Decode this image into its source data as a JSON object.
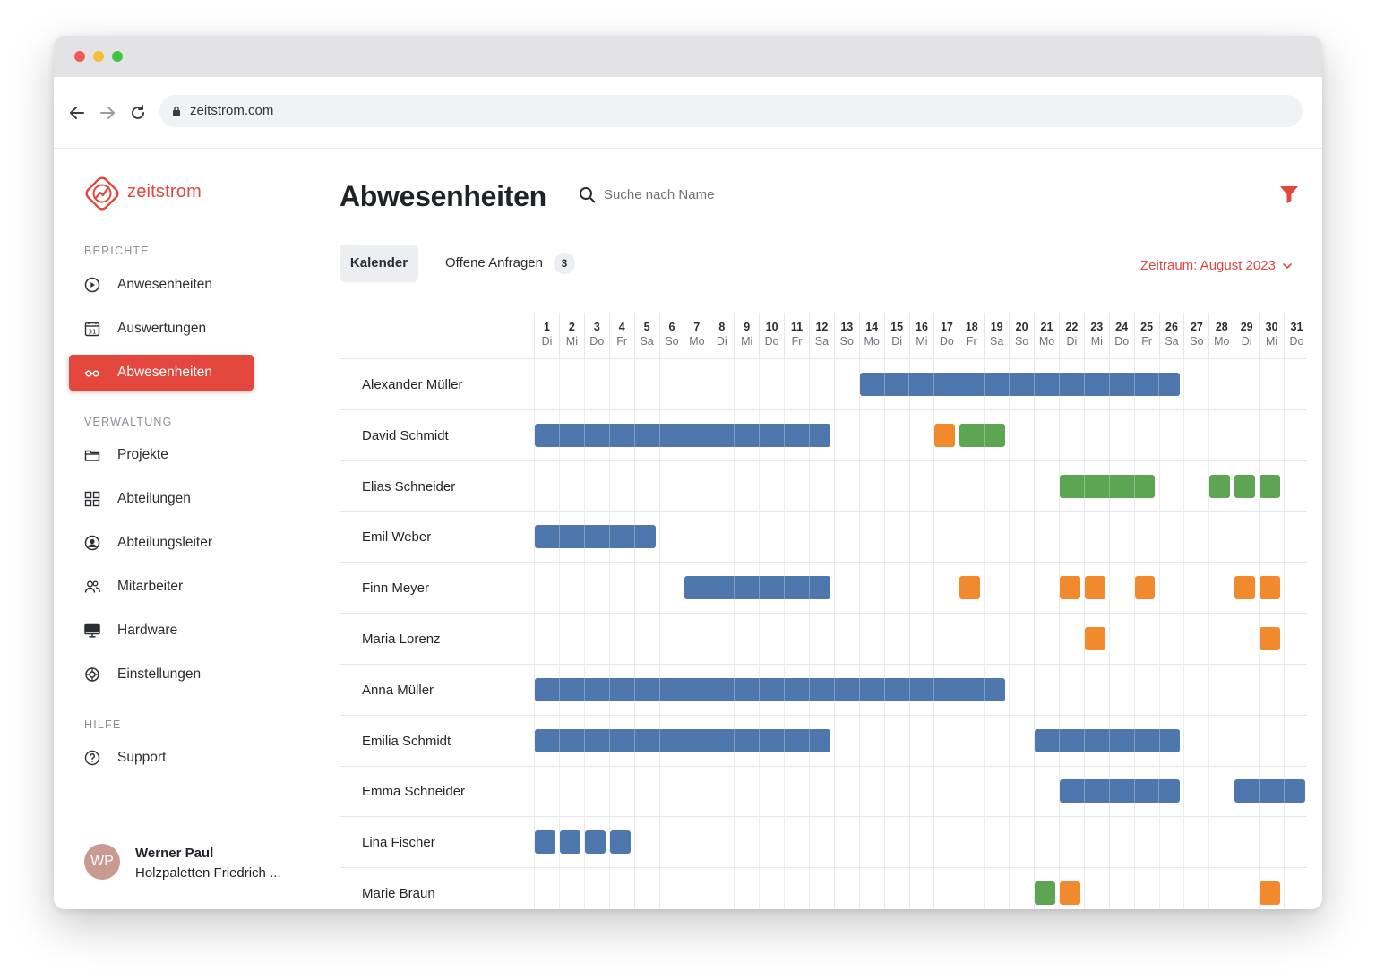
{
  "browser": {
    "url": "zeitstrom.com"
  },
  "app": {
    "logo_text": "zeitstrom"
  },
  "sidebar": {
    "sections": [
      {
        "title": "BERICHTE",
        "items": [
          {
            "label": "Anwesenheiten",
            "icon": "play-circle-icon",
            "active": false
          },
          {
            "label": "Auswertungen",
            "icon": "calendar-icon",
            "active": false
          },
          {
            "label": "Abwesenheiten",
            "icon": "glasses-icon",
            "active": true
          }
        ]
      },
      {
        "title": "VERWALTUNG",
        "items": [
          {
            "label": "Projekte",
            "icon": "folder-icon",
            "active": false
          },
          {
            "label": "Abteilungen",
            "icon": "grid-icon",
            "active": false
          },
          {
            "label": "Abteilungsleiter",
            "icon": "user-circle-icon",
            "active": false
          },
          {
            "label": "Mitarbeiter",
            "icon": "users-icon",
            "active": false
          },
          {
            "label": "Hardware",
            "icon": "monitor-icon",
            "active": false
          },
          {
            "label": "Einstellungen",
            "icon": "settings-icon",
            "active": false
          }
        ]
      },
      {
        "title": "HILFE",
        "items": [
          {
            "label": "Support",
            "icon": "help-circle-icon",
            "active": false
          }
        ]
      }
    ],
    "user": {
      "initials": "WP",
      "name": "Werner Paul",
      "company": "Holzpaletten Friedrich ..."
    }
  },
  "main": {
    "title": "Abwesenheiten",
    "search_placeholder": "Suche nach Name",
    "tabs": [
      {
        "label": "Kalender",
        "active": true
      },
      {
        "label": "Offene Anfragen",
        "active": false,
        "count": "3"
      }
    ],
    "period_label": "Zeitraum: August 2023"
  },
  "calendar": {
    "days": [
      {
        "num": "1",
        "wd": "Di"
      },
      {
        "num": "2",
        "wd": "Mi"
      },
      {
        "num": "3",
        "wd": "Do"
      },
      {
        "num": "4",
        "wd": "Fr"
      },
      {
        "num": "5",
        "wd": "Sa"
      },
      {
        "num": "6",
        "wd": "So"
      },
      {
        "num": "7",
        "wd": "Mo"
      },
      {
        "num": "8",
        "wd": "Di"
      },
      {
        "num": "9",
        "wd": "Mi"
      },
      {
        "num": "10",
        "wd": "Do"
      },
      {
        "num": "11",
        "wd": "Fr"
      },
      {
        "num": "12",
        "wd": "Sa"
      },
      {
        "num": "13",
        "wd": "So"
      },
      {
        "num": "14",
        "wd": "Mo"
      },
      {
        "num": "15",
        "wd": "Di"
      },
      {
        "num": "16",
        "wd": "Mi"
      },
      {
        "num": "17",
        "wd": "Do"
      },
      {
        "num": "18",
        "wd": "Fr"
      },
      {
        "num": "19",
        "wd": "Sa"
      },
      {
        "num": "20",
        "wd": "So"
      },
      {
        "num": "21",
        "wd": "Mo"
      },
      {
        "num": "22",
        "wd": "Di"
      },
      {
        "num": "23",
        "wd": "Mi"
      },
      {
        "num": "24",
        "wd": "Do"
      },
      {
        "num": "25",
        "wd": "Fr"
      },
      {
        "num": "26",
        "wd": "Sa"
      },
      {
        "num": "27",
        "wd": "So"
      },
      {
        "num": "28",
        "wd": "Mo"
      },
      {
        "num": "29",
        "wd": "Di"
      },
      {
        "num": "30",
        "wd": "Mi"
      },
      {
        "num": "31",
        "wd": "Do"
      }
    ],
    "colors": {
      "blue": "#4e77ad",
      "green": "#5da552",
      "orange": "#f08a2c"
    },
    "employees": [
      {
        "name": "Alexander Müller",
        "absences": [
          {
            "start": 14,
            "end": 26,
            "type": "blue"
          }
        ]
      },
      {
        "name": "David Schmidt",
        "absences": [
          {
            "start": 1,
            "end": 12,
            "type": "blue"
          },
          {
            "start": 17,
            "end": 17,
            "type": "orange"
          },
          {
            "start": 18,
            "end": 19,
            "type": "green"
          }
        ]
      },
      {
        "name": "Elias Schneider",
        "absences": [
          {
            "start": 22,
            "end": 25,
            "type": "green"
          },
          {
            "start": 28,
            "end": 28,
            "type": "green"
          },
          {
            "start": 29,
            "end": 29,
            "type": "green"
          },
          {
            "start": 30,
            "end": 30,
            "type": "green"
          }
        ]
      },
      {
        "name": "Emil Weber",
        "absences": [
          {
            "start": 1,
            "end": 5,
            "type": "blue"
          }
        ]
      },
      {
        "name": "Finn Meyer",
        "absences": [
          {
            "start": 7,
            "end": 12,
            "type": "blue"
          },
          {
            "start": 18,
            "end": 18,
            "type": "orange"
          },
          {
            "start": 22,
            "end": 22,
            "type": "orange"
          },
          {
            "start": 23,
            "end": 23,
            "type": "orange"
          },
          {
            "start": 25,
            "end": 25,
            "type": "orange"
          },
          {
            "start": 29,
            "end": 29,
            "type": "orange"
          },
          {
            "start": 30,
            "end": 30,
            "type": "orange"
          }
        ]
      },
      {
        "name": "Maria Lorenz",
        "absences": [
          {
            "start": 23,
            "end": 23,
            "type": "orange"
          },
          {
            "start": 30,
            "end": 30,
            "type": "orange"
          }
        ]
      },
      {
        "name": "Anna Müller",
        "absences": [
          {
            "start": 1,
            "end": 19,
            "type": "blue"
          }
        ]
      },
      {
        "name": "Emilia Schmidt",
        "absences": [
          {
            "start": 1,
            "end": 12,
            "type": "blue"
          },
          {
            "start": 21,
            "end": 26,
            "type": "blue"
          }
        ]
      },
      {
        "name": "Emma Schneider",
        "absences": [
          {
            "start": 22,
            "end": 26,
            "type": "blue"
          },
          {
            "start": 29,
            "end": 31,
            "type": "blue"
          }
        ]
      },
      {
        "name": "Lina Fischer",
        "absences": [
          {
            "start": 1,
            "end": 1,
            "type": "blue"
          },
          {
            "start": 2,
            "end": 2,
            "type": "blue"
          },
          {
            "start": 3,
            "end": 3,
            "type": "blue"
          },
          {
            "start": 4,
            "end": 4,
            "type": "blue"
          }
        ]
      },
      {
        "name": "Marie Braun",
        "absences": [
          {
            "start": 21,
            "end": 21,
            "type": "green"
          },
          {
            "start": 22,
            "end": 22,
            "type": "orange"
          },
          {
            "start": 30,
            "end": 30,
            "type": "orange"
          }
        ]
      }
    ]
  }
}
